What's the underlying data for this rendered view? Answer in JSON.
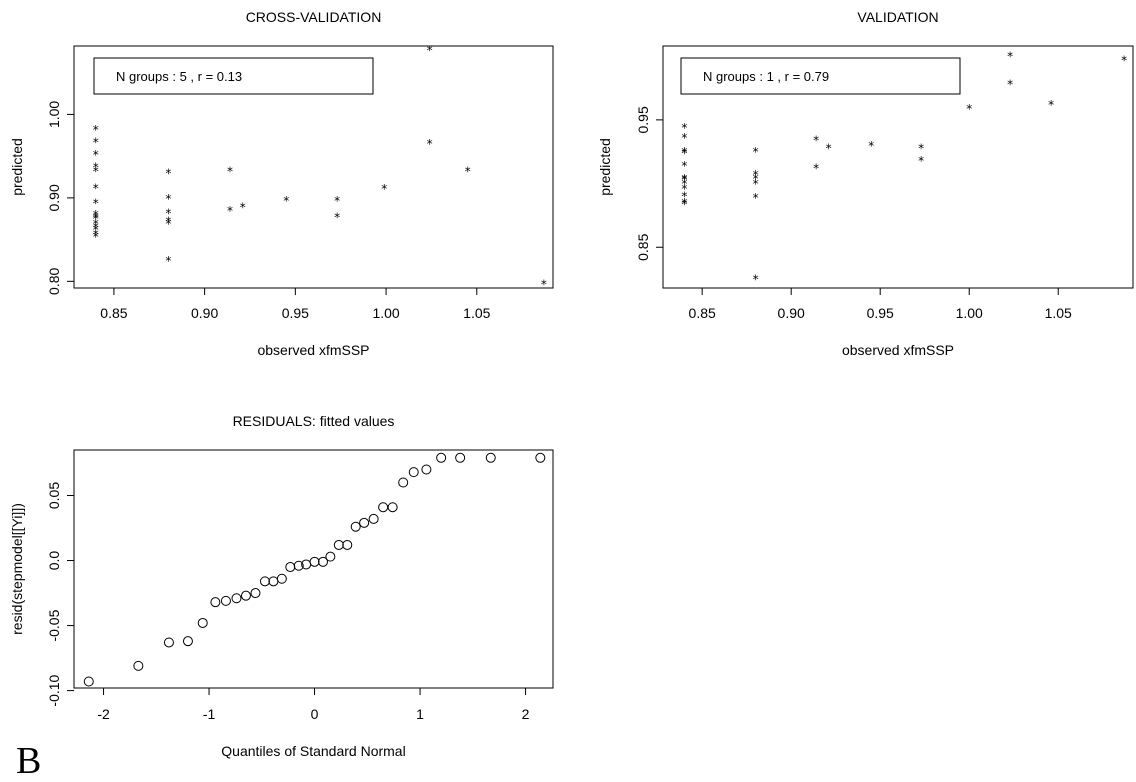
{
  "panel_letter": "B",
  "chart_data": [
    {
      "type": "scatter",
      "title": "CROSS-VALIDATION",
      "xlabel": "observed xfmSSP",
      "ylabel": "predicted",
      "legend_text": "N groups :  5 , r = 0.13",
      "legend_position": "top-left",
      "marker": "*",
      "xlim": [
        0.828,
        1.092
      ],
      "ylim": [
        0.792,
        1.082
      ],
      "xticks": [
        0.85,
        0.9,
        0.95,
        1.0,
        1.05
      ],
      "xtick_labels": [
        "0.85",
        "0.90",
        "0.95",
        "1.00",
        "1.05"
      ],
      "yticks": [
        0.8,
        0.9,
        1.0
      ],
      "ytick_labels": [
        "0.80",
        "0.90",
        "1.00"
      ],
      "x": [
        0.84,
        0.84,
        0.84,
        0.84,
        0.84,
        0.84,
        0.84,
        0.84,
        0.84,
        0.84,
        0.84,
        0.84,
        0.84,
        0.84,
        0.84,
        0.88,
        0.88,
        0.88,
        0.88,
        0.88,
        0.88,
        0.914,
        0.914,
        0.921,
        0.945,
        0.973,
        0.973,
        0.999,
        1.024,
        1.024,
        1.045,
        1.087
      ],
      "y": [
        0.985,
        0.97,
        0.955,
        0.94,
        0.935,
        0.915,
        0.897,
        0.883,
        0.88,
        0.878,
        0.872,
        0.868,
        0.865,
        0.86,
        0.857,
        0.933,
        0.902,
        0.885,
        0.875,
        0.872,
        0.828,
        0.935,
        0.888,
        0.892,
        0.9,
        0.9,
        0.88,
        0.914,
        0.968,
        1.08,
        0.935,
        0.8
      ]
    },
    {
      "type": "scatter",
      "title": "VALIDATION",
      "xlabel": "observed xfmSSP",
      "ylabel": "predicted",
      "legend_text": "N groups :  1 , r = 0.79",
      "legend_position": "top-left",
      "marker": "*",
      "xlim": [
        0.828,
        1.092
      ],
      "ylim": [
        0.818,
        1.008
      ],
      "xticks": [
        0.85,
        0.9,
        0.95,
        1.0,
        1.05
      ],
      "xtick_labels": [
        "0.85",
        "0.90",
        "0.95",
        "1.00",
        "1.05"
      ],
      "yticks": [
        0.85,
        0.95
      ],
      "ytick_labels": [
        "0.85",
        "0.95"
      ],
      "x": [
        0.84,
        0.84,
        0.84,
        0.84,
        0.84,
        0.84,
        0.84,
        0.84,
        0.84,
        0.84,
        0.84,
        0.84,
        0.88,
        0.88,
        0.88,
        0.88,
        0.88,
        0.88,
        0.914,
        0.914,
        0.921,
        0.945,
        0.973,
        0.973,
        1.0,
        1.023,
        1.023,
        1.046,
        1.087
      ],
      "y": [
        0.946,
        0.938,
        0.927,
        0.926,
        0.916,
        0.906,
        0.905,
        0.902,
        0.898,
        0.892,
        0.887,
        0.886,
        0.927,
        0.909,
        0.906,
        0.902,
        0.891,
        0.827,
        0.936,
        0.914,
        0.93,
        0.932,
        0.93,
        0.92,
        0.961,
        0.98,
        1.002,
        0.964,
        0.999
      ]
    },
    {
      "type": "scatter",
      "title": "RESIDUALS: fitted values",
      "xlabel": "Quantiles of Standard Normal",
      "ylabel": "resid(stepmodel[[Yi]])",
      "marker": "o",
      "xlim": [
        -2.28,
        2.26
      ],
      "ylim": [
        -0.098,
        0.085
      ],
      "xticks": [
        -2,
        -1,
        0,
        1,
        2
      ],
      "xtick_labels": [
        "-2",
        "-1",
        "0",
        "1",
        "2"
      ],
      "yticks": [
        -0.1,
        -0.05,
        0.0,
        0.05
      ],
      "ytick_labels": [
        "-0.10",
        "-0.05",
        "0.0",
        "0.05"
      ],
      "x": [
        -2.14,
        -1.67,
        -1.38,
        -1.2,
        -1.06,
        -0.94,
        -0.84,
        -0.74,
        -0.65,
        -0.56,
        -0.47,
        -0.39,
        -0.31,
        -0.23,
        -0.15,
        -0.08,
        0.0,
        0.08,
        0.15,
        0.23,
        0.31,
        0.39,
        0.47,
        0.56,
        0.65,
        0.74,
        0.84,
        0.94,
        1.06,
        1.2,
        1.38,
        1.67,
        2.14
      ],
      "y": [
        -0.093,
        -0.081,
        -0.063,
        -0.062,
        -0.048,
        -0.032,
        -0.031,
        -0.029,
        -0.027,
        -0.025,
        -0.016,
        -0.016,
        -0.014,
        -0.005,
        -0.004,
        -0.003,
        -0.001,
        -0.001,
        0.003,
        0.012,
        0.012,
        0.026,
        0.029,
        0.032,
        0.041,
        0.041,
        0.06,
        0.068,
        0.07,
        0.079,
        0.079,
        0.079,
        0.079
      ]
    }
  ]
}
